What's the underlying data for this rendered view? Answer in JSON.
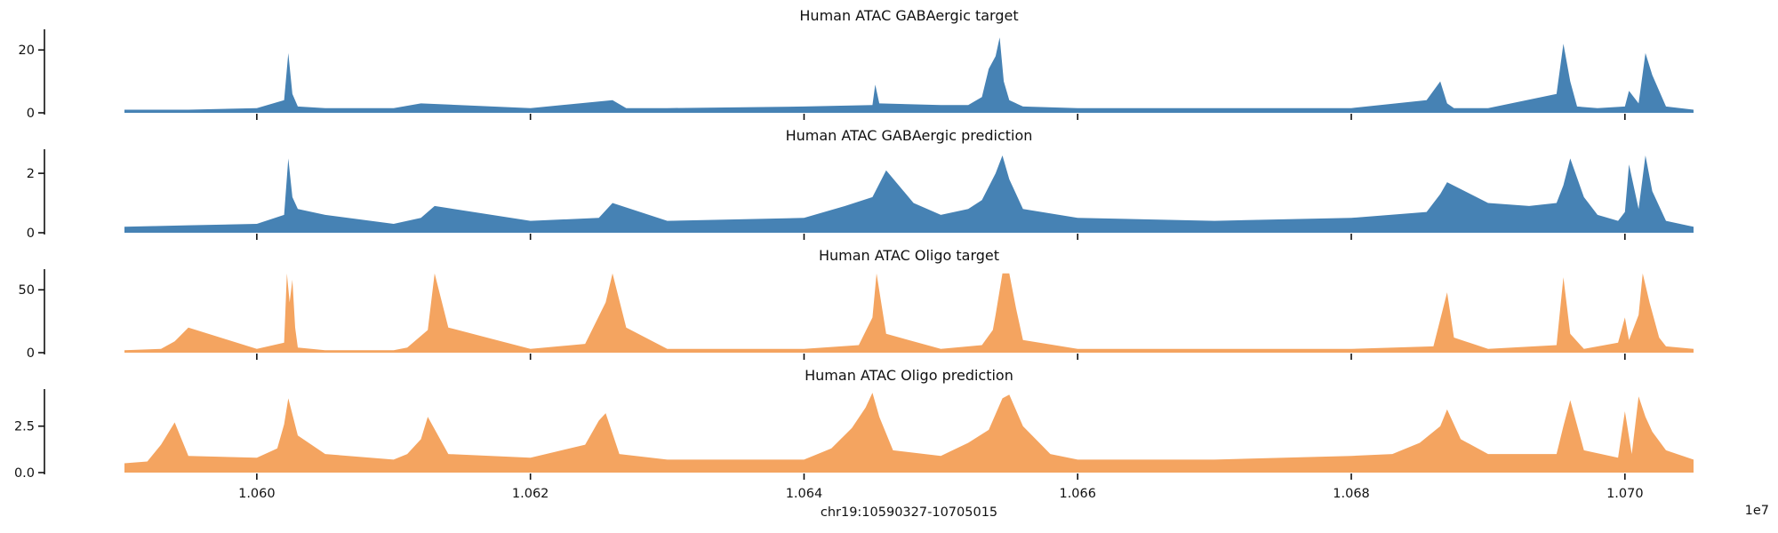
{
  "chart_data": [
    {
      "type": "area",
      "title": "Human ATAC GABAergic target",
      "color": "#4682b4",
      "ylim": [
        0,
        26
      ],
      "yticks": [
        0,
        20
      ],
      "ytick_labels": [
        "0",
        "20"
      ],
      "x": [
        10590327,
        10595000,
        10600000,
        10602000,
        10602300,
        10602600,
        10603000,
        10605000,
        10610000,
        10612000,
        10620000,
        10626000,
        10627000,
        10630000,
        10640000,
        10645000,
        10645200,
        10645500,
        10650000,
        10652000,
        10653000,
        10653500,
        10654000,
        10654300,
        10654600,
        10655000,
        10656000,
        10660000,
        10670000,
        10680000,
        10685500,
        10686500,
        10687000,
        10687500,
        10690000,
        10695000,
        10695500,
        10696000,
        10696500,
        10698000,
        10700000,
        10700300,
        10701000,
        10701500,
        10702000,
        10703000,
        10705015
      ],
      "y": [
        1,
        1,
        1.5,
        4,
        19,
        6,
        2,
        1.5,
        1.5,
        3,
        1.5,
        4,
        1.5,
        1.5,
        2,
        2.5,
        9,
        3,
        2.5,
        2.5,
        5,
        14,
        18,
        24,
        10,
        4,
        2,
        1.5,
        1.5,
        1.5,
        4,
        10,
        3,
        1.5,
        1.5,
        6,
        22,
        10,
        2,
        1.5,
        2,
        7,
        3,
        19,
        12,
        2,
        1
      ]
    },
    {
      "type": "area",
      "title": "Human ATAC GABAergic prediction",
      "color": "#4682b4",
      "ylim": [
        0,
        2.75
      ],
      "yticks": [
        0,
        2
      ],
      "ytick_labels": [
        "0",
        "2"
      ],
      "x": [
        10590327,
        10595000,
        10600000,
        10602000,
        10602300,
        10602600,
        10603000,
        10605000,
        10610000,
        10612000,
        10613000,
        10620000,
        10625000,
        10626000,
        10630000,
        10640000,
        10643000,
        10645000,
        10646000,
        10648000,
        10650000,
        10652000,
        10653000,
        10654000,
        10654500,
        10655000,
        10656000,
        10660000,
        10670000,
        10680000,
        10685500,
        10686500,
        10687000,
        10690000,
        10693000,
        10695000,
        10695500,
        10696000,
        10697000,
        10698000,
        10699500,
        10700000,
        10700300,
        10701000,
        10701500,
        10702000,
        10703000,
        10705015
      ],
      "y": [
        0.2,
        0.25,
        0.3,
        0.6,
        2.5,
        1.2,
        0.8,
        0.6,
        0.3,
        0.5,
        0.9,
        0.4,
        0.5,
        1,
        0.4,
        0.5,
        0.9,
        1.2,
        2.1,
        1.0,
        0.6,
        0.8,
        1.1,
        2.0,
        2.6,
        1.8,
        0.8,
        0.5,
        0.4,
        0.5,
        0.7,
        1.3,
        1.7,
        1.0,
        0.9,
        1.0,
        1.6,
        2.5,
        1.2,
        0.6,
        0.4,
        0.7,
        2.3,
        0.8,
        2.6,
        1.4,
        0.4,
        0.2
      ]
    },
    {
      "type": "area",
      "title": "Human ATAC Oligo target",
      "color": "#f4a460",
      "ylim": [
        0,
        65
      ],
      "yticks": [
        0,
        50
      ],
      "ytick_labels": [
        "0",
        "50"
      ],
      "x": [
        10590327,
        10593000,
        10594000,
        10595000,
        10600000,
        10602000,
        10602200,
        10602400,
        10602600,
        10602800,
        10603000,
        10605000,
        10610000,
        10611000,
        10612500,
        10613000,
        10614000,
        10620000,
        10624000,
        10625500,
        10626000,
        10627000,
        10630000,
        10640000,
        10644000,
        10645000,
        10645300,
        10646000,
        10650000,
        10653000,
        10653800,
        10654000,
        10654500,
        10655000,
        10655500,
        10656000,
        10660000,
        10670000,
        10680000,
        10686000,
        10687000,
        10687500,
        10690000,
        10695000,
        10695500,
        10696000,
        10697000,
        10699500,
        10700000,
        10700300,
        10701000,
        10701300,
        10701800,
        10702500,
        10703000,
        10705015
      ],
      "y": [
        2,
        3,
        9,
        20,
        3,
        8,
        63,
        40,
        58,
        20,
        4,
        2,
        2,
        4,
        18,
        63,
        20,
        3,
        7,
        40,
        63,
        20,
        3,
        3,
        6,
        28,
        63,
        15,
        3,
        6,
        18,
        30,
        63,
        63,
        35,
        10,
        3,
        3,
        3,
        5,
        48,
        12,
        3,
        6,
        60,
        15,
        3,
        8,
        28,
        10,
        30,
        63,
        40,
        12,
        5,
        3
      ]
    },
    {
      "type": "area",
      "title": "Human ATAC Oligo prediction",
      "color": "#f4a460",
      "ylim": [
        0,
        4.4
      ],
      "yticks": [
        0,
        2.5
      ],
      "ytick_labels": [
        "0.0",
        "2.5"
      ],
      "x": [
        10590327,
        10592000,
        10593000,
        10594000,
        10595000,
        10600000,
        10601500,
        10602000,
        10602300,
        10603000,
        10605000,
        10610000,
        10611000,
        10612000,
        10612500,
        10614000,
        10620000,
        10624000,
        10625000,
        10625500,
        10626500,
        10630000,
        10640000,
        10642000,
        10643500,
        10644500,
        10645000,
        10645500,
        10646500,
        10650000,
        10652000,
        10653500,
        10654500,
        10655000,
        10656000,
        10658000,
        10660000,
        10670000,
        10680000,
        10683000,
        10685000,
        10686500,
        10687000,
        10688000,
        10690000,
        10695000,
        10695500,
        10696000,
        10697000,
        10699500,
        10700000,
        10700500,
        10701000,
        10701500,
        10702000,
        10703000,
        10705015
      ],
      "y": [
        0.5,
        0.6,
        1.5,
        2.7,
        0.9,
        0.8,
        1.3,
        2.6,
        4.0,
        2.0,
        1.0,
        0.7,
        1.0,
        1.8,
        3.0,
        1.0,
        0.8,
        1.5,
        2.8,
        3.2,
        1.0,
        0.7,
        0.7,
        1.3,
        2.4,
        3.5,
        4.3,
        3.0,
        1.2,
        0.9,
        1.6,
        2.3,
        4.0,
        4.2,
        2.5,
        1.0,
        0.7,
        0.7,
        0.9,
        1.0,
        1.6,
        2.5,
        3.4,
        1.8,
        1.0,
        1.0,
        2.5,
        3.9,
        1.2,
        0.8,
        3.3,
        1.0,
        4.1,
        3.0,
        2.2,
        1.2,
        0.7
      ]
    }
  ],
  "xaxis": {
    "xlim": [
      10590327,
      10705015
    ],
    "ticks": [
      10600000,
      10620000,
      10640000,
      10660000,
      10680000,
      10700000
    ],
    "tick_labels": [
      "1.060",
      "1.062",
      "1.064",
      "1.066",
      "1.068",
      "1.070"
    ],
    "offset_label": "1e7",
    "label": "chr19:10590327-10705015"
  }
}
